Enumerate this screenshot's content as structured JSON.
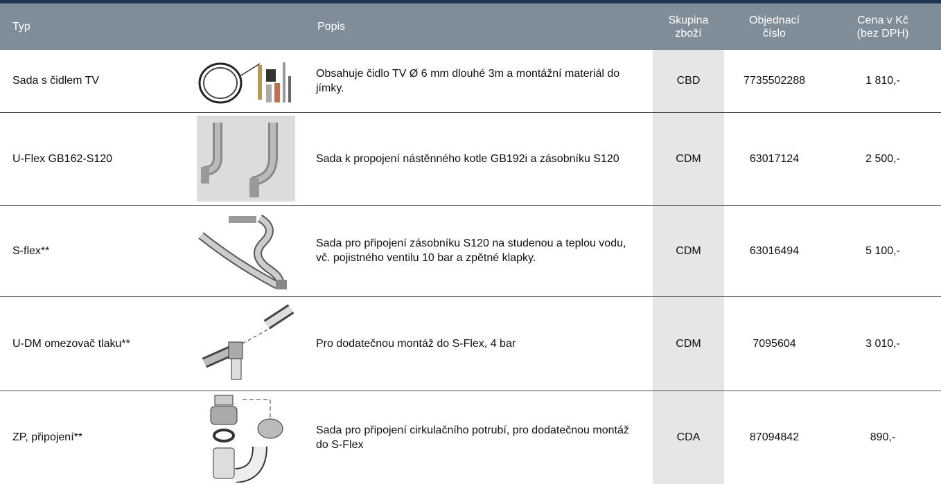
{
  "table": {
    "header": [
      "Typ",
      "Popis",
      "Skupina\nzboží",
      "Objednací\nčíslo",
      "Cena v Kč\n(bez DPH)"
    ],
    "rows": [
      [
        "Sada s čidlem TV",
        "Obsahuje čidlo TV Ø 6 mm dlouhé 3m a montážní materiál do jímky.",
        "CBD",
        "7735502288",
        "1 810,-"
      ],
      [
        "U-Flex GB162-S120",
        "Sada k propojení nástěnného kotle GB192i a zásobníku S120",
        "CDM",
        "63017124",
        "2 500,-"
      ],
      [
        "S-flex**",
        "Sada pro připojení zásobníku S120 na studenou a teplou vodu, vč. pojistného ventilu 10 bar a zpětné klapky.",
        "CDM",
        "63016494",
        "5 100,-"
      ],
      [
        "U-DM omezovač tlaku**",
        "Pro dodatečnou montáž do S-Flex, 4 bar",
        "CDM",
        "7095604",
        "3 010,-"
      ],
      [
        "ZP, připojení**",
        "Sada pro připojení cirkulačního potrubí, pro dodatečnou montáž do S-Flex",
        "CDA",
        "87094842",
        "890,-"
      ]
    ]
  }
}
